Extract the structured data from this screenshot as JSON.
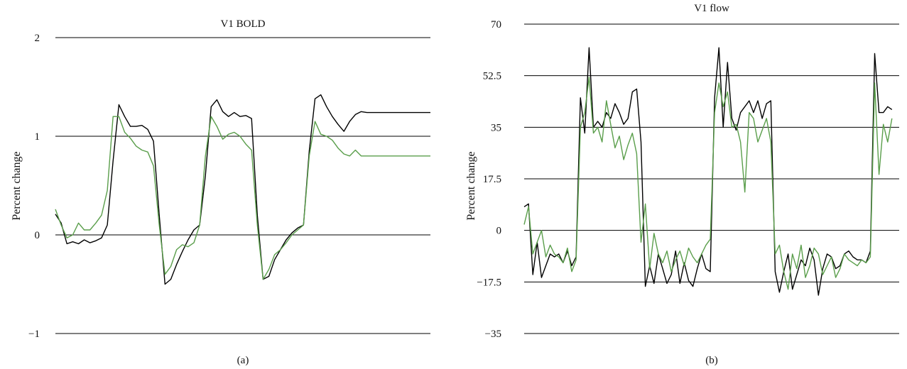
{
  "chart_data": [
    {
      "type": "line",
      "title": "V1 BOLD",
      "ylabel": "Percent change",
      "caption": "(a)",
      "ylim": [
        -1,
        2
      ],
      "yticks": [
        {
          "value": 2,
          "label": "2"
        },
        {
          "value": 1,
          "label": "1"
        },
        {
          "value": 0,
          "label": "0"
        },
        {
          "value": -1,
          "label": "−1"
        }
      ],
      "xlim": [
        0,
        130
      ],
      "grid": true,
      "series": [
        {
          "color": "#000000",
          "x": [
            0,
            2,
            4,
            6,
            8,
            10,
            12,
            14,
            16,
            18,
            20,
            22,
            24,
            26,
            28,
            30,
            32,
            34,
            36,
            38,
            40,
            42,
            44,
            46,
            48,
            50,
            52,
            54,
            56,
            58,
            60,
            62,
            64,
            66,
            68,
            70,
            72,
            74,
            76,
            78,
            80,
            82,
            84,
            86,
            88,
            90,
            92,
            94,
            96,
            98,
            100,
            102,
            104,
            106,
            108,
            110,
            112,
            114,
            116,
            118,
            120,
            122,
            124,
            126,
            128,
            130
          ],
          "y": [
            0.21,
            0.12,
            -0.09,
            -0.07,
            -0.09,
            -0.05,
            -0.08,
            -0.06,
            -0.03,
            0.1,
            0.75,
            1.32,
            1.2,
            1.1,
            1.1,
            1.11,
            1.07,
            0.95,
            0.2,
            -0.5,
            -0.45,
            -0.3,
            -0.17,
            -0.05,
            0.05,
            0.1,
            0.6,
            1.3,
            1.37,
            1.25,
            1.2,
            1.24,
            1.2,
            1.21,
            1.18,
            0.2,
            -0.45,
            -0.42,
            -0.25,
            -0.15,
            -0.05,
            0.02,
            0.07,
            0.1,
            0.85,
            1.38,
            1.42,
            1.3,
            1.2,
            1.12,
            1.05,
            1.15,
            1.22,
            1.25,
            1.24,
            1.24,
            1.24,
            1.24,
            1.24,
            1.24,
            1.24,
            1.24,
            1.24,
            1.24,
            1.24,
            1.24
          ]
        },
        {
          "color": "#5a9e4b",
          "x": [
            0,
            2,
            4,
            6,
            8,
            10,
            12,
            14,
            16,
            18,
            20,
            22,
            24,
            26,
            28,
            30,
            32,
            34,
            36,
            38,
            40,
            42,
            44,
            46,
            48,
            50,
            52,
            54,
            56,
            58,
            60,
            62,
            64,
            66,
            68,
            70,
            72,
            74,
            76,
            78,
            80,
            82,
            84,
            86,
            88,
            90,
            92,
            94,
            96,
            98,
            100,
            102,
            104,
            106,
            108,
            110,
            112,
            114,
            116,
            118,
            120,
            122,
            124,
            126,
            128,
            130
          ],
          "y": [
            0.26,
            0.1,
            -0.03,
            0.0,
            0.12,
            0.05,
            0.05,
            0.12,
            0.2,
            0.45,
            1.2,
            1.2,
            1.04,
            0.98,
            0.9,
            0.86,
            0.84,
            0.7,
            0.1,
            -0.4,
            -0.32,
            -0.15,
            -0.1,
            -0.12,
            -0.08,
            0.1,
            0.8,
            1.2,
            1.1,
            0.97,
            1.02,
            1.04,
            1.0,
            0.92,
            0.86,
            0.1,
            -0.45,
            -0.35,
            -0.2,
            -0.15,
            -0.08,
            0.0,
            0.05,
            0.1,
            0.8,
            1.15,
            1.02,
            1.0,
            0.96,
            0.88,
            0.82,
            0.8,
            0.86,
            0.8,
            0.8,
            0.8,
            0.8,
            0.8,
            0.8,
            0.8,
            0.8,
            0.8,
            0.8,
            0.8,
            0.8,
            0.8
          ]
        }
      ]
    },
    {
      "type": "line",
      "title": "V1 flow",
      "ylabel": "Percent change",
      "caption": "(b)",
      "ylim": [
        -35,
        70
      ],
      "yticks": [
        {
          "value": 70,
          "label": "70"
        },
        {
          "value": 52.5,
          "label": "52.5"
        },
        {
          "value": 35,
          "label": "35"
        },
        {
          "value": 17.5,
          "label": "17.5"
        },
        {
          "value": 0,
          "label": "0"
        },
        {
          "value": -17.5,
          "label": "−17.5"
        },
        {
          "value": -35,
          "label": "−35"
        }
      ],
      "xlim": [
        0,
        130
      ],
      "grid": true,
      "series": [
        {
          "color": "#000000",
          "x": [
            0,
            1.5,
            3,
            4.5,
            6,
            7.5,
            9,
            10.5,
            12,
            13.5,
            15,
            16.5,
            18,
            19.5,
            21,
            22.5,
            24,
            25.5,
            27,
            28.5,
            30,
            31.5,
            33,
            34.5,
            36,
            37.5,
            39,
            40.5,
            42,
            43.5,
            45,
            46.5,
            48,
            49.5,
            51,
            52.5,
            54,
            55.5,
            57,
            58.5,
            60,
            61.5,
            63,
            64.5,
            66,
            67.5,
            69,
            70.5,
            72,
            73.5,
            75,
            76.5,
            78,
            79.5,
            81,
            82.5,
            84,
            85.5,
            87,
            88.5,
            90,
            91.5,
            93,
            94.5,
            96,
            97.5,
            99,
            100.5,
            102,
            103.5,
            105,
            106.5,
            108,
            109.5,
            111,
            112.5,
            114,
            115.5,
            117,
            118.5,
            120,
            121.5,
            123,
            124.5,
            126,
            127.5
          ],
          "y": [
            8,
            9,
            -15,
            -4,
            -16,
            -12,
            -8,
            -9,
            -8,
            -11,
            -7,
            -12,
            -9,
            45,
            33,
            62,
            35,
            37,
            35,
            40,
            38,
            43,
            40,
            36,
            38,
            47,
            48,
            30,
            -19,
            -12,
            -18,
            -8,
            -13,
            -18,
            -15,
            -7,
            -18,
            -11,
            -17,
            -19,
            -13,
            -8,
            -13,
            -14,
            45,
            62,
            35,
            57,
            38,
            34,
            40,
            42,
            44,
            40,
            44,
            38,
            43,
            44,
            -14,
            -21,
            -14,
            -8,
            -20,
            -15,
            -10,
            -12,
            -6,
            -10,
            -22,
            -13,
            -8,
            -9,
            -13,
            -12,
            -8,
            -7,
            -9,
            -10,
            -10,
            -11,
            -7,
            60,
            40,
            40,
            42,
            41
          ]
        },
        {
          "color": "#5a9e4b",
          "x": [
            0,
            1.5,
            3,
            4.5,
            6,
            7.5,
            9,
            10.5,
            12,
            13.5,
            15,
            16.5,
            18,
            19.5,
            21,
            22.5,
            24,
            25.5,
            27,
            28.5,
            30,
            31.5,
            33,
            34.5,
            36,
            37.5,
            39,
            40.5,
            42,
            43.5,
            45,
            46.5,
            48,
            49.5,
            51,
            52.5,
            54,
            55.5,
            57,
            58.5,
            60,
            61.5,
            63,
            64.5,
            66,
            67.5,
            69,
            70.5,
            72,
            73.5,
            75,
            76.5,
            78,
            79.5,
            81,
            82.5,
            84,
            85.5,
            87,
            88.5,
            90,
            91.5,
            93,
            94.5,
            96,
            97.5,
            99,
            100.5,
            102,
            103.5,
            105,
            106.5,
            108,
            109.5,
            111,
            112.5,
            114,
            115.5,
            117,
            118.5,
            120,
            121.5,
            123,
            124.5,
            126,
            127.5
          ],
          "y": [
            2,
            8,
            -8,
            -4,
            0,
            -9,
            -5,
            -8,
            -9,
            -11,
            -6,
            -14,
            -10,
            35,
            40,
            52,
            33,
            35,
            30,
            44,
            36,
            28,
            32,
            24,
            29,
            33,
            26,
            -4,
            9,
            -13,
            -1,
            -8,
            -11,
            -7,
            -14,
            -10,
            -7,
            -12,
            -6,
            -9,
            -11,
            -8,
            -5,
            -3,
            40,
            50,
            42,
            47,
            35,
            36,
            30,
            13,
            40,
            38,
            30,
            34,
            38,
            30,
            -8,
            -5,
            -14,
            -20,
            -8,
            -13,
            -5,
            -16,
            -12,
            -6,
            -8,
            -15,
            -12,
            -9,
            -16,
            -13,
            -8,
            -10,
            -11,
            -12,
            -10,
            -11,
            -9,
            50,
            19,
            36,
            30,
            38
          ]
        }
      ]
    }
  ]
}
